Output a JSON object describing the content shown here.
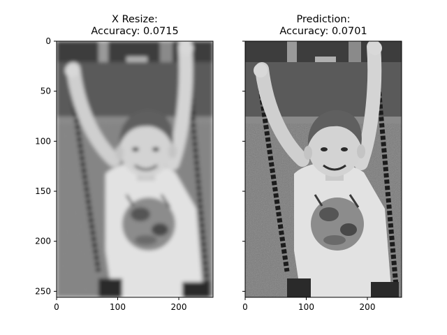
{
  "chart_data": [
    {
      "type": "image",
      "title_line1": "X Resize:",
      "title_line2": "Accuracy: 0.0715",
      "xlim": [
        0,
        256
      ],
      "ylim": [
        256,
        0
      ],
      "x_ticks": [
        0,
        100,
        200
      ],
      "y_ticks": [
        0,
        50,
        100,
        150,
        200,
        250
      ],
      "y_tick_labels_visible": true,
      "image_description": "grayscale photo of a smiling boy on a swing, blurred (resized input)",
      "blurred": true
    },
    {
      "type": "image",
      "title_line1": "Prediction:",
      "title_line2": "Accuracy: 0.0701",
      "xlim": [
        0,
        256
      ],
      "ylim": [
        256,
        0
      ],
      "x_ticks": [
        0,
        100,
        200
      ],
      "y_ticks": [
        0,
        50,
        100,
        150,
        200,
        250
      ],
      "y_tick_labels_visible": false,
      "image_description": "grayscale photo of a smiling boy on a swing, sharper (model prediction)",
      "blurred": false
    }
  ]
}
